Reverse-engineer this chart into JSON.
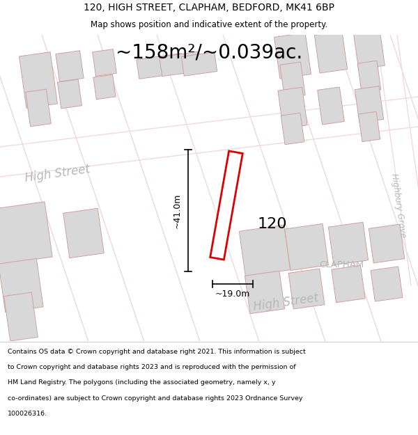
{
  "title_line1": "120, HIGH STREET, CLAPHAM, BEDFORD, MK41 6BP",
  "title_line2": "Map shows position and indicative extent of the property.",
  "area_text": "~158m²/~0.039ac.",
  "label_120": "120",
  "dim_horizontal": "~19.0m",
  "dim_vertical": "~41.0m",
  "street_label_left": "High Street",
  "street_label_right": "High Street",
  "street_label_highbury": "Highbury Grove",
  "street_label_clapham": "CLAPHAM",
  "footer_lines": [
    "Contains OS data © Crown copyright and database right 2021. This information is subject",
    "to Crown copyright and database rights 2023 and is reproduced with the permission of",
    "HM Land Registry. The polygons (including the associated geometry, namely x, y",
    "co-ordinates) are subject to Crown copyright and database rights 2023 Ordnance Survey",
    "100026316."
  ],
  "bg_color": "#ffffff",
  "map_bg": "#ffffff",
  "road_color": "#f0dada",
  "building_fill": "#d8d8d8",
  "building_edge": "#d0a0a0",
  "highlight_color": "#dd0000",
  "title_color": "#000000",
  "street_color": "#b8b8b8",
  "footer_color": "#000000",
  "dim_color": "#000000"
}
